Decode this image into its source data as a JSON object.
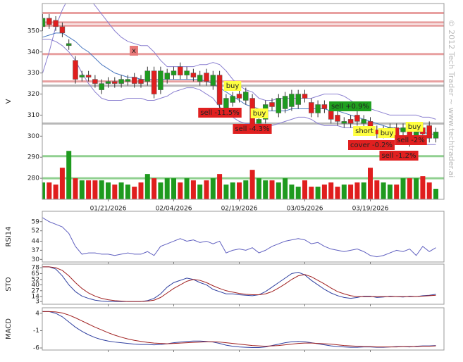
{
  "chart_data": [
    {
      "type": "candlestick",
      "ylabel": "V",
      "watermark": "© 2012 Tech Trader ~ www.techtrader.ai",
      "categories": [
        null,
        null,
        null,
        null,
        null,
        null,
        null,
        null,
        null,
        null,
        "01/21/2026",
        null,
        null,
        null,
        null,
        null,
        null,
        null,
        null,
        null,
        "02/04/2026",
        null,
        null,
        null,
        null,
        null,
        null,
        null,
        null,
        null,
        "02/19/2026",
        null,
        null,
        null,
        null,
        null,
        null,
        null,
        null,
        null,
        "03/05/2026",
        null,
        null,
        null,
        null,
        null,
        null,
        null,
        null,
        null,
        "03/19/2026",
        null,
        null,
        null,
        null,
        null,
        null,
        null,
        null,
        null,
        null
      ],
      "open": [
        352,
        356,
        355,
        352,
        343,
        336,
        328,
        329,
        327,
        322,
        325,
        326,
        325,
        326,
        328,
        327,
        326,
        331,
        322,
        327,
        329,
        333,
        329,
        330,
        326,
        330,
        324,
        329,
        312,
        316,
        320,
        317,
        318,
        306,
        308,
        316,
        311,
        313,
        314,
        315,
        320,
        316,
        311,
        315,
        312,
        310,
        306,
        308,
        310,
        306,
        307,
        303,
        301,
        302,
        304,
        302,
        304,
        299,
        304,
        305,
        299
      ],
      "high": [
        358,
        358,
        357,
        354,
        346,
        338,
        331,
        331,
        329,
        327,
        328,
        328,
        329,
        329,
        330,
        329,
        333,
        333,
        333,
        332,
        333,
        335,
        333,
        332,
        331,
        332,
        331,
        331,
        320,
        321,
        322,
        323,
        320,
        310,
        317,
        318,
        320,
        321,
        322,
        322,
        322,
        318,
        317,
        317,
        314,
        312,
        309,
        310,
        312,
        310,
        309,
        305,
        305,
        306,
        306,
        306,
        306,
        304,
        306,
        307,
        304
      ],
      "low": [
        350,
        351,
        350,
        347,
        341,
        325,
        326,
        326,
        323,
        320,
        323,
        323,
        323,
        324,
        323,
        323,
        324,
        318,
        320,
        325,
        327,
        327,
        327,
        326,
        324,
        324,
        322,
        313,
        310,
        314,
        316,
        315,
        303,
        304,
        306,
        312,
        309,
        311,
        312,
        313,
        316,
        309,
        309,
        311,
        306,
        305,
        304,
        304,
        305,
        304,
        301,
        299,
        299,
        300,
        298,
        300,
        295,
        297,
        299,
        297,
        297
      ],
      "close": [
        356,
        353,
        352,
        349,
        344,
        327,
        329,
        328,
        325,
        325,
        326,
        325,
        327,
        327,
        325,
        325,
        331,
        320,
        331,
        330,
        331,
        329,
        331,
        328,
        329,
        326,
        329,
        315,
        318,
        319,
        318,
        321,
        305,
        308,
        315,
        314,
        318,
        319,
        320,
        320,
        318,
        311,
        315,
        313,
        308,
        307,
        307,
        306,
        307,
        308,
        303,
        301,
        303,
        304,
        300,
        304,
        297,
        302,
        301,
        299,
        302
      ],
      "volume": [
        278,
        278,
        277,
        285,
        293,
        280,
        279,
        279,
        279,
        279,
        278,
        277,
        278,
        277,
        276,
        278,
        282,
        280,
        278,
        280,
        280,
        278,
        280,
        279,
        277,
        279,
        280,
        282,
        277,
        278,
        278,
        279,
        284,
        280,
        279,
        279,
        278,
        280,
        277,
        276,
        279,
        276,
        276,
        277,
        278,
        276,
        277,
        277,
        278,
        278,
        285,
        279,
        278,
        277,
        277,
        280,
        280,
        280,
        281,
        278,
        275
      ],
      "up_color": "#1e9a1e",
      "down_color": "#e01e1e",
      "overlays": [
        {
          "color": "#8a7fd0",
          "values": [
            330,
            340,
            352,
            360,
            366,
            368,
            368,
            366,
            362,
            358,
            354,
            350,
            347,
            345,
            344,
            343,
            343,
            340,
            336,
            333,
            333,
            333,
            333,
            333,
            334,
            334,
            335,
            334,
            331,
            327,
            324,
            322,
            321,
            318,
            317,
            317,
            318,
            318,
            318,
            318,
            318,
            318,
            319,
            320,
            320,
            320,
            319,
            317,
            315,
            314,
            313,
            312,
            311,
            310,
            310,
            310,
            310,
            310,
            309,
            309,
            308
          ]
        },
        {
          "color": "#8a7fd0",
          "values": [
            346,
            346,
            345,
            343,
            340,
            336,
            330,
            325,
            321,
            318,
            317,
            317,
            317,
            318,
            318,
            318,
            317,
            317,
            318,
            319,
            321,
            322,
            323,
            323,
            322,
            320,
            318,
            314,
            311,
            309,
            307,
            306,
            306,
            305,
            305,
            305,
            306,
            307,
            308,
            309,
            309,
            308,
            306,
            305,
            305,
            305,
            304,
            304,
            304,
            303,
            303,
            302,
            301,
            300,
            299,
            298,
            297,
            297,
            296,
            296,
            296
          ]
        },
        {
          "color": "#4a78c0",
          "values": [
            347,
            348,
            349,
            349,
            347,
            345,
            342,
            340,
            337,
            334,
            332,
            330,
            329,
            328,
            328,
            327,
            327,
            327,
            327,
            327,
            327,
            327,
            327,
            327,
            327,
            326,
            325,
            323,
            321,
            319,
            317,
            315,
            314,
            313,
            312,
            312,
            312,
            312,
            313,
            313,
            313,
            313,
            313,
            313,
            312,
            312,
            311,
            310,
            309,
            308,
            307,
            306,
            305,
            304,
            304,
            303,
            303,
            302,
            302,
            301,
            301
          ]
        }
      ],
      "levels": [
        {
          "value": 358.5,
          "color": "#e8a0a0"
        },
        {
          "value": 354,
          "color": "#e8a0a0"
        },
        {
          "value": 352.5,
          "color": "#e8a0a0"
        },
        {
          "value": 339,
          "color": "#e8a0a0"
        },
        {
          "value": 326,
          "color": "#e8a0a0"
        },
        {
          "value": 324,
          "color": "#b8b8b8"
        },
        {
          "value": 306,
          "color": "#b8b8b8"
        },
        {
          "value": 290.5,
          "color": "#90d090"
        },
        {
          "value": 280,
          "color": "#90d090"
        }
      ],
      "annotations": [
        {
          "text": "x",
          "color": "#e87878"
        },
        {
          "text": "buy",
          "color": "#ffff40"
        },
        {
          "text": "sell -11.5%",
          "color": "#e02020"
        },
        {
          "text": "buy",
          "color": "#ffff40"
        },
        {
          "text": "sell -4.3%",
          "color": "#e02020"
        },
        {
          "text": "sell +0.9%",
          "color": "#20a020"
        },
        {
          "text": "short",
          "color": "#ffff40"
        },
        {
          "text": "buy",
          "color": "#ffff40"
        },
        {
          "text": "buy",
          "color": "#ffff40"
        },
        {
          "text": "cover -0.2%",
          "color": "#e02020"
        },
        {
          "text": "sell -2%",
          "color": "#e02020"
        },
        {
          "text": "sell -1.2%",
          "color": "#e02020"
        }
      ],
      "ylim": [
        270,
        363
      ],
      "yticks": [
        280,
        290,
        300,
        310,
        320,
        330,
        340,
        350
      ]
    },
    {
      "type": "line",
      "ylabel": "RSI14",
      "ylim": [
        28,
        67
      ],
      "yticks": [
        30,
        37,
        44,
        52,
        59
      ],
      "series": [
        {
          "color": "#6060c0",
          "values": [
            62,
            59,
            57,
            55,
            50,
            40,
            34,
            35,
            35,
            34,
            34,
            33,
            34,
            35,
            34,
            34,
            36,
            33,
            40,
            42,
            44,
            46,
            44,
            45,
            43,
            44,
            42,
            44,
            35,
            37,
            38,
            37,
            39,
            35,
            37,
            40,
            42,
            44,
            45,
            46,
            45,
            42,
            43,
            40,
            38,
            37,
            36,
            37,
            38,
            36,
            33,
            32,
            33,
            35,
            37,
            36,
            38,
            33,
            40,
            36,
            39
          ]
        }
      ]
    },
    {
      "type": "line",
      "ylabel": "STO",
      "ylim": [
        -3,
        86
      ],
      "yticks": [
        3,
        14,
        27,
        40,
        52,
        65,
        78
      ],
      "series": [
        {
          "color": "#3040a0",
          "values": [
            80,
            80,
            75,
            60,
            40,
            25,
            15,
            10,
            6,
            4,
            3,
            3,
            3,
            3,
            3,
            3,
            5,
            10,
            20,
            35,
            45,
            50,
            55,
            52,
            45,
            40,
            30,
            25,
            20,
            20,
            18,
            17,
            16,
            18,
            25,
            35,
            45,
            55,
            65,
            68,
            62,
            50,
            40,
            30,
            22,
            16,
            12,
            10,
            12,
            15,
            15,
            12,
            13,
            15,
            14,
            13,
            15,
            14,
            16,
            17,
            19
          ]
        },
        {
          "color": "#a02020",
          "values": [
            80,
            80,
            78,
            72,
            60,
            45,
            32,
            22,
            15,
            10,
            7,
            5,
            4,
            3,
            3,
            3,
            4,
            6,
            12,
            22,
            32,
            40,
            48,
            52,
            50,
            45,
            38,
            32,
            27,
            24,
            21,
            19,
            18,
            18,
            20,
            25,
            33,
            42,
            52,
            60,
            63,
            58,
            50,
            42,
            33,
            25,
            20,
            16,
            14,
            14,
            14,
            14,
            14,
            14,
            14,
            14,
            14,
            14,
            15,
            16,
            17
          ]
        }
      ]
    },
    {
      "type": "line",
      "ylabel": "MACD",
      "ylim": [
        -6.6,
        5.6
      ],
      "yticks": [
        -6,
        -1,
        4
      ],
      "series": [
        {
          "color": "#3040a0",
          "values": [
            4.5,
            4.5,
            4,
            3,
            1.5,
            0,
            -1.2,
            -2.2,
            -3,
            -3.6,
            -4,
            -4.3,
            -4.5,
            -4.7,
            -4.9,
            -5,
            -5,
            -5.1,
            -5,
            -4.8,
            -4.5,
            -4.3,
            -4.1,
            -4,
            -4,
            -4.1,
            -4.3,
            -4.7,
            -5.2,
            -5.5,
            -5.7,
            -5.8,
            -5.9,
            -5.9,
            -5.7,
            -5.3,
            -4.9,
            -4.5,
            -4.2,
            -4.1,
            -4.2,
            -4.5,
            -4.8,
            -5.1,
            -5.4,
            -5.6,
            -5.7,
            -5.8,
            -5.8,
            -5.7,
            -5.7,
            -5.8,
            -5.8,
            -5.7,
            -5.6,
            -5.6,
            -5.7,
            -5.5,
            -5.4,
            -5.4,
            -5.3
          ]
        },
        {
          "color": "#a02020",
          "values": [
            4.5,
            4.5,
            4.4,
            4.1,
            3.5,
            2.7,
            1.8,
            0.9,
            0,
            -0.8,
            -1.6,
            -2.3,
            -2.9,
            -3.4,
            -3.8,
            -4.1,
            -4.4,
            -4.6,
            -4.7,
            -4.8,
            -4.7,
            -4.6,
            -4.5,
            -4.4,
            -4.3,
            -4.2,
            -4.2,
            -4.3,
            -4.5,
            -4.7,
            -4.9,
            -5.1,
            -5.3,
            -5.4,
            -5.5,
            -5.4,
            -5.3,
            -5.1,
            -4.9,
            -4.7,
            -4.6,
            -4.6,
            -4.7,
            -4.8,
            -4.9,
            -5.1,
            -5.3,
            -5.4,
            -5.5,
            -5.6,
            -5.6,
            -5.7,
            -5.7,
            -5.7,
            -5.7,
            -5.6,
            -5.6,
            -5.6,
            -5.5,
            -5.5,
            -5.4
          ]
        }
      ]
    }
  ]
}
